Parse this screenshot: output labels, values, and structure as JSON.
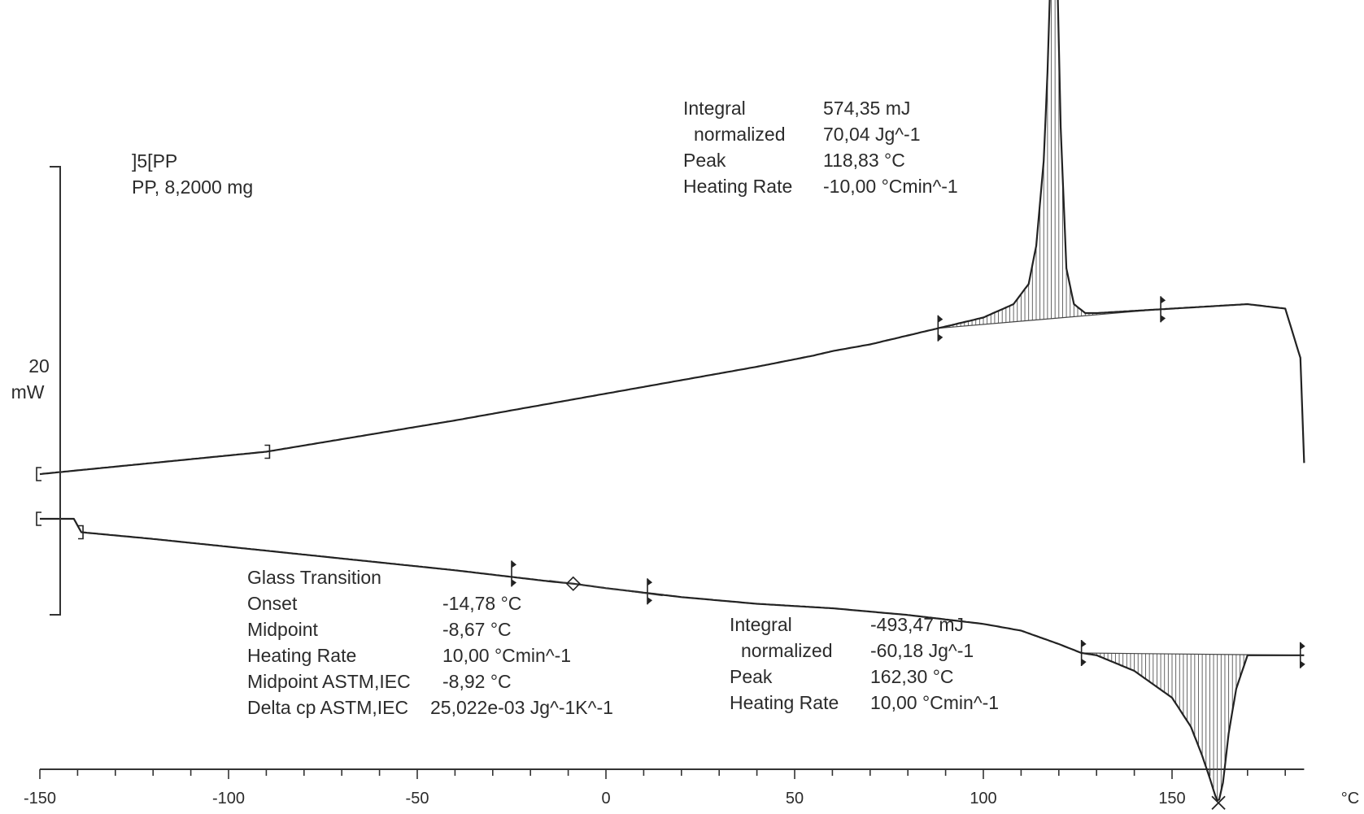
{
  "chart_data": {
    "type": "line",
    "title": "",
    "xlabel": "",
    "ylabel": "",
    "x_unit": "°C",
    "xlim": [
      -150,
      185
    ],
    "x_ticks": [
      -150,
      -100,
      -50,
      0,
      50,
      100,
      150
    ],
    "scale_bar": {
      "value": "20",
      "unit": "mW"
    },
    "grid": false,
    "sample": {
      "line1": "]5[PP",
      "line2": "PP, 8,2000 mg"
    },
    "series": [
      {
        "id": "cooling",
        "x": [
          -150,
          -90,
          -40,
          0,
          20,
          40,
          55,
          60,
          70,
          80,
          90,
          100,
          108,
          112,
          114,
          116,
          117,
          118,
          118.8,
          119.5,
          120.5,
          122,
          124,
          127,
          130,
          140,
          150,
          160,
          170,
          180,
          184,
          185
        ],
        "y": [
          0,
          1.0,
          2.4,
          3.6,
          4.2,
          4.8,
          5.3,
          5.5,
          5.8,
          6.2,
          6.6,
          7.0,
          7.6,
          8.5,
          10.2,
          14.0,
          18.0,
          23.5,
          27.2,
          23.0,
          15.5,
          9.2,
          7.6,
          7.2,
          7.2,
          7.3,
          7.4,
          7.5,
          7.6,
          7.4,
          5.2,
          0.5
        ]
      },
      {
        "id": "heating",
        "x": [
          -150,
          -141,
          -140,
          -139,
          -120,
          -80,
          -40,
          -14.8,
          -8.7,
          0,
          20,
          40,
          60,
          80,
          100,
          110,
          120,
          126,
          130,
          140,
          150,
          155,
          158,
          160,
          161.5,
          162.3,
          163.5,
          165,
          167,
          170,
          180,
          185
        ],
        "y": [
          0,
          0,
          -0.3,
          -0.6,
          -0.9,
          -1.6,
          -2.3,
          -2.8,
          -2.9,
          -3.1,
          -3.5,
          -3.8,
          -4.0,
          -4.3,
          -4.7,
          -5.0,
          -5.6,
          -6.0,
          -6.1,
          -6.8,
          -8.0,
          -9.3,
          -10.6,
          -11.6,
          -12.4,
          -12.7,
          -11.8,
          -9.6,
          -7.6,
          -6.1,
          -6.1,
          -6.1
        ]
      }
    ],
    "annotations": {
      "crystallization": {
        "rows": [
          {
            "label": "Integral",
            "value": "574,35 mJ"
          },
          {
            "label": "normalized",
            "value": "70,04 Jg^-1"
          },
          {
            "label": "Peak",
            "value": "118,83 °C"
          },
          {
            "label": "Heating Rate",
            "value": "-10,00 °Cmin^-1"
          }
        ],
        "peak_x": 118.83,
        "limits": [
          88,
          147
        ]
      },
      "glass_transition": {
        "title": "Glass Transition",
        "rows": [
          {
            "label": "Onset",
            "value": "-14,78 °C"
          },
          {
            "label": "Midpoint",
            "value": "-8,67 °C"
          },
          {
            "label": "Heating Rate",
            "value": "10,00 °Cmin^-1"
          },
          {
            "label": "Midpoint ASTM,IEC",
            "value": "-8,92 °C"
          },
          {
            "label": "Delta cp ASTM,IEC",
            "value": "25,022e-03 Jg^-1K^-1"
          }
        ],
        "limits": [
          -25,
          11
        ],
        "midpoint_x": -8.67
      },
      "melting": {
        "rows": [
          {
            "label": "Integral",
            "value": "-493,47 mJ"
          },
          {
            "label": "normalized",
            "value": "-60,18 Jg^-1"
          },
          {
            "label": "Peak",
            "value": "162,30 °C"
          },
          {
            "label": "Heating Rate",
            "value": "10,00 °Cmin^-1"
          }
        ],
        "peak_x": 162.3,
        "limits": [
          126,
          184
        ]
      }
    }
  }
}
